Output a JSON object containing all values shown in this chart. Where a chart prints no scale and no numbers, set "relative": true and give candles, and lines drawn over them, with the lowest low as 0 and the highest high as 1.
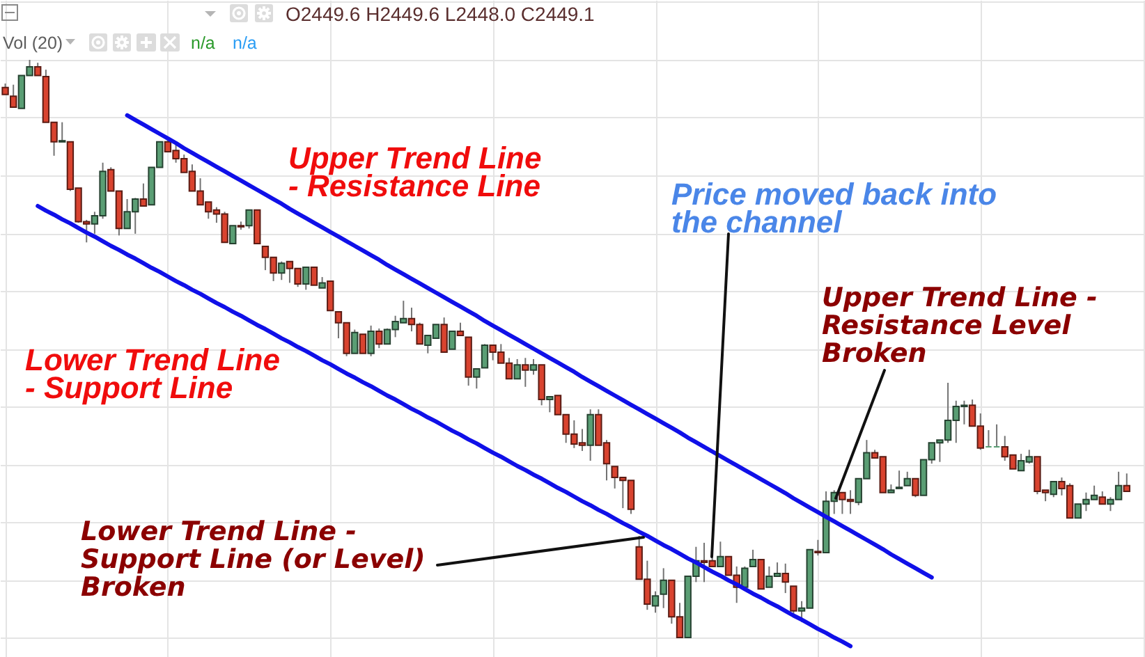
{
  "chart_data": {
    "type": "candlestick",
    "relative": true,
    "grid": true,
    "categories": [
      null,
      null,
      null,
      null,
      null,
      null,
      null,
      null,
      null,
      null,
      null,
      null,
      null,
      null,
      null,
      null,
      null,
      null,
      null,
      null,
      null,
      null,
      null,
      null,
      null,
      null,
      null,
      null,
      null,
      null,
      null,
      null,
      null,
      null,
      null,
      null,
      null,
      null,
      null,
      null,
      null,
      null,
      null,
      null,
      null,
      null,
      null,
      null,
      null,
      null,
      null,
      null,
      null,
      null,
      null,
      null,
      null,
      null,
      null,
      null,
      null,
      null,
      null,
      null,
      null,
      null,
      null,
      null,
      null,
      null,
      null,
      null,
      null,
      null,
      null,
      null,
      null,
      null,
      null,
      null,
      null,
      null,
      null,
      null,
      null,
      null,
      null,
      null,
      null,
      null,
      null,
      null,
      null,
      null,
      null,
      null,
      null,
      null,
      null,
      null,
      null,
      null,
      null,
      null,
      null,
      null,
      null,
      null,
      null,
      null,
      null,
      null,
      null,
      null,
      null,
      null,
      null,
      null,
      null,
      null,
      null,
      null,
      null,
      null,
      null,
      null,
      null,
      null,
      null,
      null,
      null,
      null,
      null,
      null,
      null,
      null,
      null,
      null,
      null
    ],
    "ohlc": [
      [
        0.952,
        0.959,
        0.94,
        0.94
      ],
      [
        0.937,
        0.957,
        0.918,
        0.918
      ],
      [
        0.916,
        0.973,
        0.916,
        0.973
      ],
      [
        0.973,
        1,
        0.973,
        0.988
      ],
      [
        0.988,
        0.995,
        0.973,
        0.973
      ],
      [
        0.971,
        0.983,
        0.892,
        0.892
      ],
      [
        0.892,
        0.892,
        0.834,
        0.858
      ],
      [
        0.858,
        0.892,
        0.858,
        0.86
      ],
      [
        0.858,
        0.858,
        0.773,
        0.776
      ],
      [
        0.778,
        0.778,
        0.718,
        0.72
      ],
      [
        0.72,
        0.723,
        0.684,
        0.716
      ],
      [
        0.716,
        0.737,
        0.699,
        0.73
      ],
      [
        0.73,
        0.822,
        0.725,
        0.807
      ],
      [
        0.81,
        0.814,
        0.773,
        0.773
      ],
      [
        0.773,
        0.773,
        0.696,
        0.708
      ],
      [
        0.708,
        0.759,
        0.708,
        0.737
      ],
      [
        0.737,
        0.761,
        0.699,
        0.759
      ],
      [
        0.759,
        0.786,
        0.747,
        0.747
      ],
      [
        0.749,
        0.814,
        0.749,
        0.814
      ],
      [
        0.814,
        0.858,
        0.814,
        0.858
      ],
      [
        0.858,
        0.867,
        0.841,
        0.841
      ],
      [
        0.843,
        0.853,
        0.822,
        0.829
      ],
      [
        0.829,
        0.836,
        0.805,
        0.805
      ],
      [
        0.807,
        0.819,
        0.773,
        0.773
      ],
      [
        0.773,
        0.795,
        0.749,
        0.749
      ],
      [
        0.754,
        0.754,
        0.725,
        0.737
      ],
      [
        0.74,
        0.745,
        0.718,
        0.733
      ],
      [
        0.733,
        0.737,
        0.684,
        0.684
      ],
      [
        0.682,
        0.713,
        0.682,
        0.713
      ],
      [
        0.713,
        0.72,
        0.706,
        0.711
      ],
      [
        0.713,
        0.74,
        0.708,
        0.74
      ],
      [
        0.74,
        0.74,
        0.682,
        0.682
      ],
      [
        0.677,
        0.677,
        0.636,
        0.658
      ],
      [
        0.658,
        0.658,
        0.617,
        0.631
      ],
      [
        0.631,
        0.651,
        0.619,
        0.648
      ],
      [
        0.651,
        0.651,
        0.614,
        0.639
      ],
      [
        0.639,
        0.639,
        0.607,
        0.612
      ],
      [
        0.612,
        0.641,
        0.602,
        0.641
      ],
      [
        0.641,
        0.641,
        0.61,
        0.61
      ],
      [
        0.605,
        0.624,
        0.605,
        0.614
      ],
      [
        0.617,
        0.617,
        0.566,
        0.566
      ],
      [
        0.564,
        0.564,
        0.518,
        0.545
      ],
      [
        0.545,
        0.545,
        0.487,
        0.492
      ],
      [
        0.492,
        0.533,
        0.492,
        0.528
      ],
      [
        0.525,
        0.525,
        0.492,
        0.492
      ],
      [
        0.492,
        0.54,
        0.487,
        0.53
      ],
      [
        0.53,
        0.535,
        0.501,
        0.508
      ],
      [
        0.508,
        0.535,
        0.508,
        0.533
      ],
      [
        0.533,
        0.557,
        0.52,
        0.547
      ],
      [
        0.545,
        0.583,
        0.545,
        0.552
      ],
      [
        0.552,
        0.571,
        0.53,
        0.542
      ],
      [
        0.542,
        0.545,
        0.508,
        0.508
      ],
      [
        0.506,
        0.523,
        0.492,
        0.523
      ],
      [
        0.518,
        0.542,
        0.518,
        0.542
      ],
      [
        0.542,
        0.554,
        0.494,
        0.494
      ],
      [
        0.499,
        0.53,
        0.499,
        0.53
      ],
      [
        0.53,
        0.545,
        0.523,
        0.523
      ],
      [
        0.52,
        0.52,
        0.436,
        0.451
      ],
      [
        0.451,
        0.465,
        0.431,
        0.465
      ],
      [
        0.467,
        0.508,
        0.467,
        0.506
      ],
      [
        0.506,
        0.506,
        0.48,
        0.494
      ],
      [
        0.494,
        0.508,
        0.475,
        0.475
      ],
      [
        0.475,
        0.484,
        0.448,
        0.448
      ],
      [
        0.448,
        0.482,
        0.448,
        0.472
      ],
      [
        0.472,
        0.484,
        0.434,
        0.463
      ],
      [
        0.463,
        0.482,
        0.455,
        0.472
      ],
      [
        0.472,
        0.472,
        0.402,
        0.412
      ],
      [
        0.412,
        0.417,
        0.39,
        0.417
      ],
      [
        0.419,
        0.419,
        0.386,
        0.386
      ],
      [
        0.386,
        0.386,
        0.337,
        0.352
      ],
      [
        0.352,
        0.376,
        0.328,
        0.335
      ],
      [
        0.337,
        0.361,
        0.323,
        0.333
      ],
      [
        0.333,
        0.395,
        0.306,
        0.386
      ],
      [
        0.386,
        0.395,
        0.333,
        0.333
      ],
      [
        0.337,
        0.342,
        0.272,
        0.301
      ],
      [
        0.296,
        0.296,
        0.258,
        0.277
      ],
      [
        0.277,
        0.277,
        0.224,
        0.272
      ],
      [
        0.272,
        0.272,
        0.214,
        0.222
      ],
      [
        0.157,
        0.176,
        0.101,
        0.101
      ],
      [
        0.101,
        0.133,
        0.048,
        0.058
      ],
      [
        0.055,
        0.08,
        0.043,
        0.072
      ],
      [
        0.075,
        0.12,
        0.051,
        0.099
      ],
      [
        0.099,
        0.099,
        0.024,
        0.036
      ],
      [
        0.036,
        0.06,
        0,
        0
      ],
      [
        0,
        0.106,
        0,
        0.106
      ],
      [
        0.106,
        0.157,
        0.096,
        0.133
      ],
      [
        0.133,
        0.164,
        0.096,
        0.13
      ],
      [
        0.133,
        0.171,
        0.123,
        0.123
      ],
      [
        0.123,
        0.166,
        0.123,
        0.14
      ],
      [
        0.14,
        0.14,
        0.108,
        0.108
      ],
      [
        0.108,
        0.123,
        0.06,
        0.087
      ],
      [
        0.087,
        0.123,
        0.087,
        0.12
      ],
      [
        0.123,
        0.152,
        0.123,
        0.135
      ],
      [
        0.135,
        0.135,
        0.084,
        0.084
      ],
      [
        0.087,
        0.123,
        0.087,
        0.106
      ],
      [
        0.106,
        0.13,
        0.106,
        0.111
      ],
      [
        0.111,
        0.128,
        0.077,
        0.096
      ],
      [
        0.089,
        0.089,
        0.036,
        0.046
      ],
      [
        0.046,
        0.063,
        0.027,
        0.051
      ],
      [
        0.051,
        0.152,
        0.051,
        0.152
      ],
      [
        0.149,
        0.169,
        0.142,
        0.147
      ],
      [
        0.147,
        0.253,
        0.147,
        0.236
      ],
      [
        0.236,
        0.255,
        0.214,
        0.251
      ],
      [
        0.251,
        0.251,
        0.214,
        0.239
      ],
      [
        0.239,
        0.255,
        0.214,
        0.236
      ],
      [
        0.234,
        0.275,
        0.229,
        0.275
      ],
      [
        0.275,
        0.342,
        0.275,
        0.32
      ],
      [
        0.32,
        0.325,
        0.311,
        0.311
      ],
      [
        0.313,
        0.313,
        0.251,
        0.251
      ],
      [
        0.251,
        0.265,
        0.251,
        0.255
      ],
      [
        0.258,
        0.289,
        0.258,
        0.26
      ],
      [
        0.263,
        0.287,
        0.263,
        0.275
      ],
      [
        0.275,
        0.275,
        0.243,
        0.246
      ],
      [
        0.246,
        0.308,
        0.246,
        0.308
      ],
      [
        0.308,
        0.337,
        0.301,
        0.337
      ],
      [
        0.337,
        0.342,
        0.304,
        0.342
      ],
      [
        0.342,
        0.441,
        0.337,
        0.376
      ],
      [
        0.376,
        0.41,
        0.337,
        0.4
      ],
      [
        0.4,
        0.41,
        0.369,
        0.402
      ],
      [
        0.402,
        0.412,
        0.366,
        0.366
      ],
      [
        0.366,
        0.388,
        0.325,
        0.328
      ],
      [
        0.33,
        0.359,
        0.33,
        0.33
      ],
      [
        0.33,
        0.369,
        0.33,
        0.33
      ],
      [
        0.33,
        0.349,
        0.306,
        0.313
      ],
      [
        0.316,
        0.316,
        0.292,
        0.292
      ],
      [
        0.289,
        0.318,
        0.289,
        0.306
      ],
      [
        0.304,
        0.325,
        0.301,
        0.313
      ],
      [
        0.313,
        0.313,
        0.248,
        0.253
      ],
      [
        0.255,
        0.255,
        0.236,
        0.251
      ],
      [
        0.248,
        0.27,
        0.243,
        0.27
      ],
      [
        0.27,
        0.277,
        0.246,
        0.258
      ],
      [
        0.263,
        0.267,
        0.207,
        0.207
      ],
      [
        0.207,
        0.231,
        0.207,
        0.231
      ],
      [
        0.231,
        0.251,
        0.219,
        0.239
      ],
      [
        0.239,
        0.263,
        0.239,
        0.246
      ],
      [
        0.243,
        0.253,
        0.231,
        0.231
      ],
      [
        0.231,
        0.243,
        0.219,
        0.239
      ],
      [
        0.239,
        0.287,
        0.239,
        0.263
      ],
      [
        0.263,
        0.284,
        0.253,
        0.253
      ]
    ],
    "colors": [
      "#d9432f",
      "#d9432f",
      "#5a9e74",
      "#5a9e74",
      "#d9432f",
      "#d9432f",
      "#d9432f",
      "#5a9e74",
      "#d9432f",
      "#d9432f",
      "#d9432f",
      "#5a9e74",
      "#5a9e74",
      "#d9432f",
      "#d9432f",
      "#5a9e74",
      "#5a9e74",
      "#d9432f",
      "#5a9e74",
      "#5a9e74",
      "#d9432f",
      "#d9432f",
      "#d9432f",
      "#d9432f",
      "#d9432f",
      "#d9432f",
      "#d9432f",
      "#d9432f",
      "#5a9e74",
      "#d9432f",
      "#5a9e74",
      "#d9432f",
      "#d9432f",
      "#d9432f",
      "#5a9e74",
      "#d9432f",
      "#d9432f",
      "#5a9e74",
      "#d9432f",
      "#5a9e74",
      "#d9432f",
      "#d9432f",
      "#d9432f",
      "#5a9e74",
      "#d9432f",
      "#5a9e74",
      "#d9432f",
      "#5a9e74",
      "#5a9e74",
      "#5a9e74",
      "#d9432f",
      "#d9432f",
      "#5a9e74",
      "#5a9e74",
      "#d9432f",
      "#5a9e74",
      "#d9432f",
      "#d9432f",
      "#5a9e74",
      "#5a9e74",
      "#d9432f",
      "#d9432f",
      "#d9432f",
      "#5a9e74",
      "#d9432f",
      "#5a9e74",
      "#d9432f",
      "#5a9e74",
      "#d9432f",
      "#d9432f",
      "#d9432f",
      "#d9432f",
      "#5a9e74",
      "#d9432f",
      "#d9432f",
      "#d9432f",
      "#d9432f",
      "#d9432f",
      "#d9432f",
      "#d9432f",
      "#5a9e74",
      "#5a9e74",
      "#d9432f",
      "#d9432f",
      "#5a9e74",
      "#5a9e74",
      "#d9432f",
      "#d9432f",
      "#5a9e74",
      "#d9432f",
      "#d9432f",
      "#5a9e74",
      "#5a9e74",
      "#d9432f",
      "#5a9e74",
      "#5a9e74",
      "#d9432f",
      "#d9432f",
      "#5a9e74",
      "#5a9e74",
      "#d9432f",
      "#5a9e74",
      "#5a9e74",
      "#d9432f",
      "#d9432f",
      "#5a9e74",
      "#5a9e74",
      "#d9432f",
      "#d9432f",
      "#5a9e74",
      "#5a9e74",
      "#5a9e74",
      "#d9432f",
      "#5a9e74",
      "#5a9e74",
      "#5a9e74",
      "#5a9e74",
      "#5a9e74",
      "#5a9e74",
      "#d9432f",
      "#d9432f",
      "#5a9e74",
      "#5a9e74",
      "#d9432f",
      "#d9432f",
      "#5a9e74",
      "#5a9e74",
      "#d9432f",
      "#d9432f",
      "#5a9e74",
      "#d9432f",
      "#d9432f",
      "#5a9e74",
      "#5a9e74",
      "#5a9e74",
      "#d9432f",
      "#5a9e74",
      "#5a9e74",
      "#d9432f"
    ],
    "series": [
      {
        "type": "line",
        "color": "#1010e8",
        "values": [
          null,
          null,
          null,
          null,
          null,
          null,
          null,
          null,
          null,
          null,
          null,
          null,
          null,
          null,
          null,
          0.904,
          0.896,
          0.888,
          0.88,
          0.872,
          0.864,
          0.856,
          0.847,
          0.839,
          0.831,
          0.823,
          0.815,
          0.807,
          0.799,
          0.791,
          0.783,
          0.775,
          0.767,
          0.759,
          0.751,
          0.742,
          0.734,
          0.726,
          0.718,
          0.71,
          0.702,
          0.694,
          0.686,
          0.678,
          0.67,
          0.662,
          0.654,
          0.645,
          0.637,
          0.629,
          0.621,
          0.613,
          0.605,
          0.597,
          0.589,
          0.581,
          0.573,
          0.565,
          0.557,
          0.548,
          0.54,
          0.532,
          0.524,
          0.516,
          0.508,
          0.5,
          0.492,
          0.484,
          0.476,
          0.468,
          0.46,
          0.451,
          0.443,
          0.435,
          0.427,
          0.419,
          0.411,
          0.403,
          0.395,
          0.387,
          0.379,
          0.371,
          0.363,
          0.355,
          0.346,
          0.338,
          0.33,
          0.322,
          0.314,
          0.306,
          0.298,
          0.29,
          0.282,
          0.274,
          0.266,
          0.258,
          0.25,
          0.241,
          0.233,
          0.225,
          0.217,
          0.209,
          0.201,
          0.193,
          0.185,
          0.177,
          0.169,
          0.161,
          0.153,
          0.144,
          0.136,
          0.128,
          0.12,
          0.112,
          0.104,
          null,
          null,
          null,
          null,
          null,
          null,
          null,
          null,
          null,
          null,
          null,
          null,
          null,
          null,
          null,
          null,
          null,
          null,
          null,
          null,
          null,
          null,
          null,
          null
        ]
      },
      {
        "type": "line",
        "color": "#1010e8",
        "values": [
          null,
          null,
          null,
          null,
          0.747,
          0.739,
          0.732,
          0.724,
          0.717,
          0.709,
          0.701,
          0.694,
          0.686,
          0.678,
          0.671,
          0.663,
          0.656,
          0.648,
          0.64,
          0.633,
          0.625,
          0.617,
          0.61,
          0.602,
          0.595,
          0.587,
          0.579,
          0.572,
          0.564,
          0.557,
          0.549,
          0.541,
          0.534,
          0.526,
          0.518,
          0.511,
          0.503,
          0.496,
          0.488,
          0.48,
          0.473,
          0.465,
          0.457,
          0.45,
          0.442,
          0.435,
          0.427,
          0.419,
          0.412,
          0.404,
          0.396,
          0.389,
          0.381,
          0.374,
          0.366,
          0.358,
          0.351,
          0.343,
          0.336,
          0.328,
          0.32,
          0.313,
          0.305,
          0.297,
          0.29,
          0.282,
          0.275,
          0.267,
          0.259,
          0.252,
          0.244,
          0.236,
          0.229,
          0.221,
          0.214,
          0.206,
          0.198,
          0.191,
          0.183,
          0.176,
          0.168,
          0.16,
          0.153,
          0.145,
          0.137,
          0.13,
          0.122,
          0.114,
          0.107,
          0.099,
          0.092,
          0.084,
          0.076,
          0.069,
          0.061,
          0.054,
          0.046,
          0.038,
          0.031,
          0.023,
          0.015,
          0.008,
          0,
          -0.007,
          -0.015,
          null,
          null,
          null,
          null,
          null,
          null,
          null,
          null,
          null,
          null,
          null,
          null,
          null,
          null,
          null,
          null,
          null,
          null,
          null,
          null,
          null,
          null,
          null,
          null,
          null,
          null,
          null,
          null,
          null,
          null,
          null,
          null,
          null,
          null
        ]
      }
    ],
    "annotations": [
      "Upper Trend Line\n- Resistance Line",
      "Lower Trend Line\n- Support Line",
      "Price moved back into\nthe channel",
      "Upper Trend Line -\nResistance Level\nBroken",
      "Lower Trend Line -\nSupport Line (or Level)\nBroken",
      "O2449.6 H2449.6 L2448.0 C2449.1",
      "Vol (20)",
      "n/a",
      "n/a"
    ]
  }
}
